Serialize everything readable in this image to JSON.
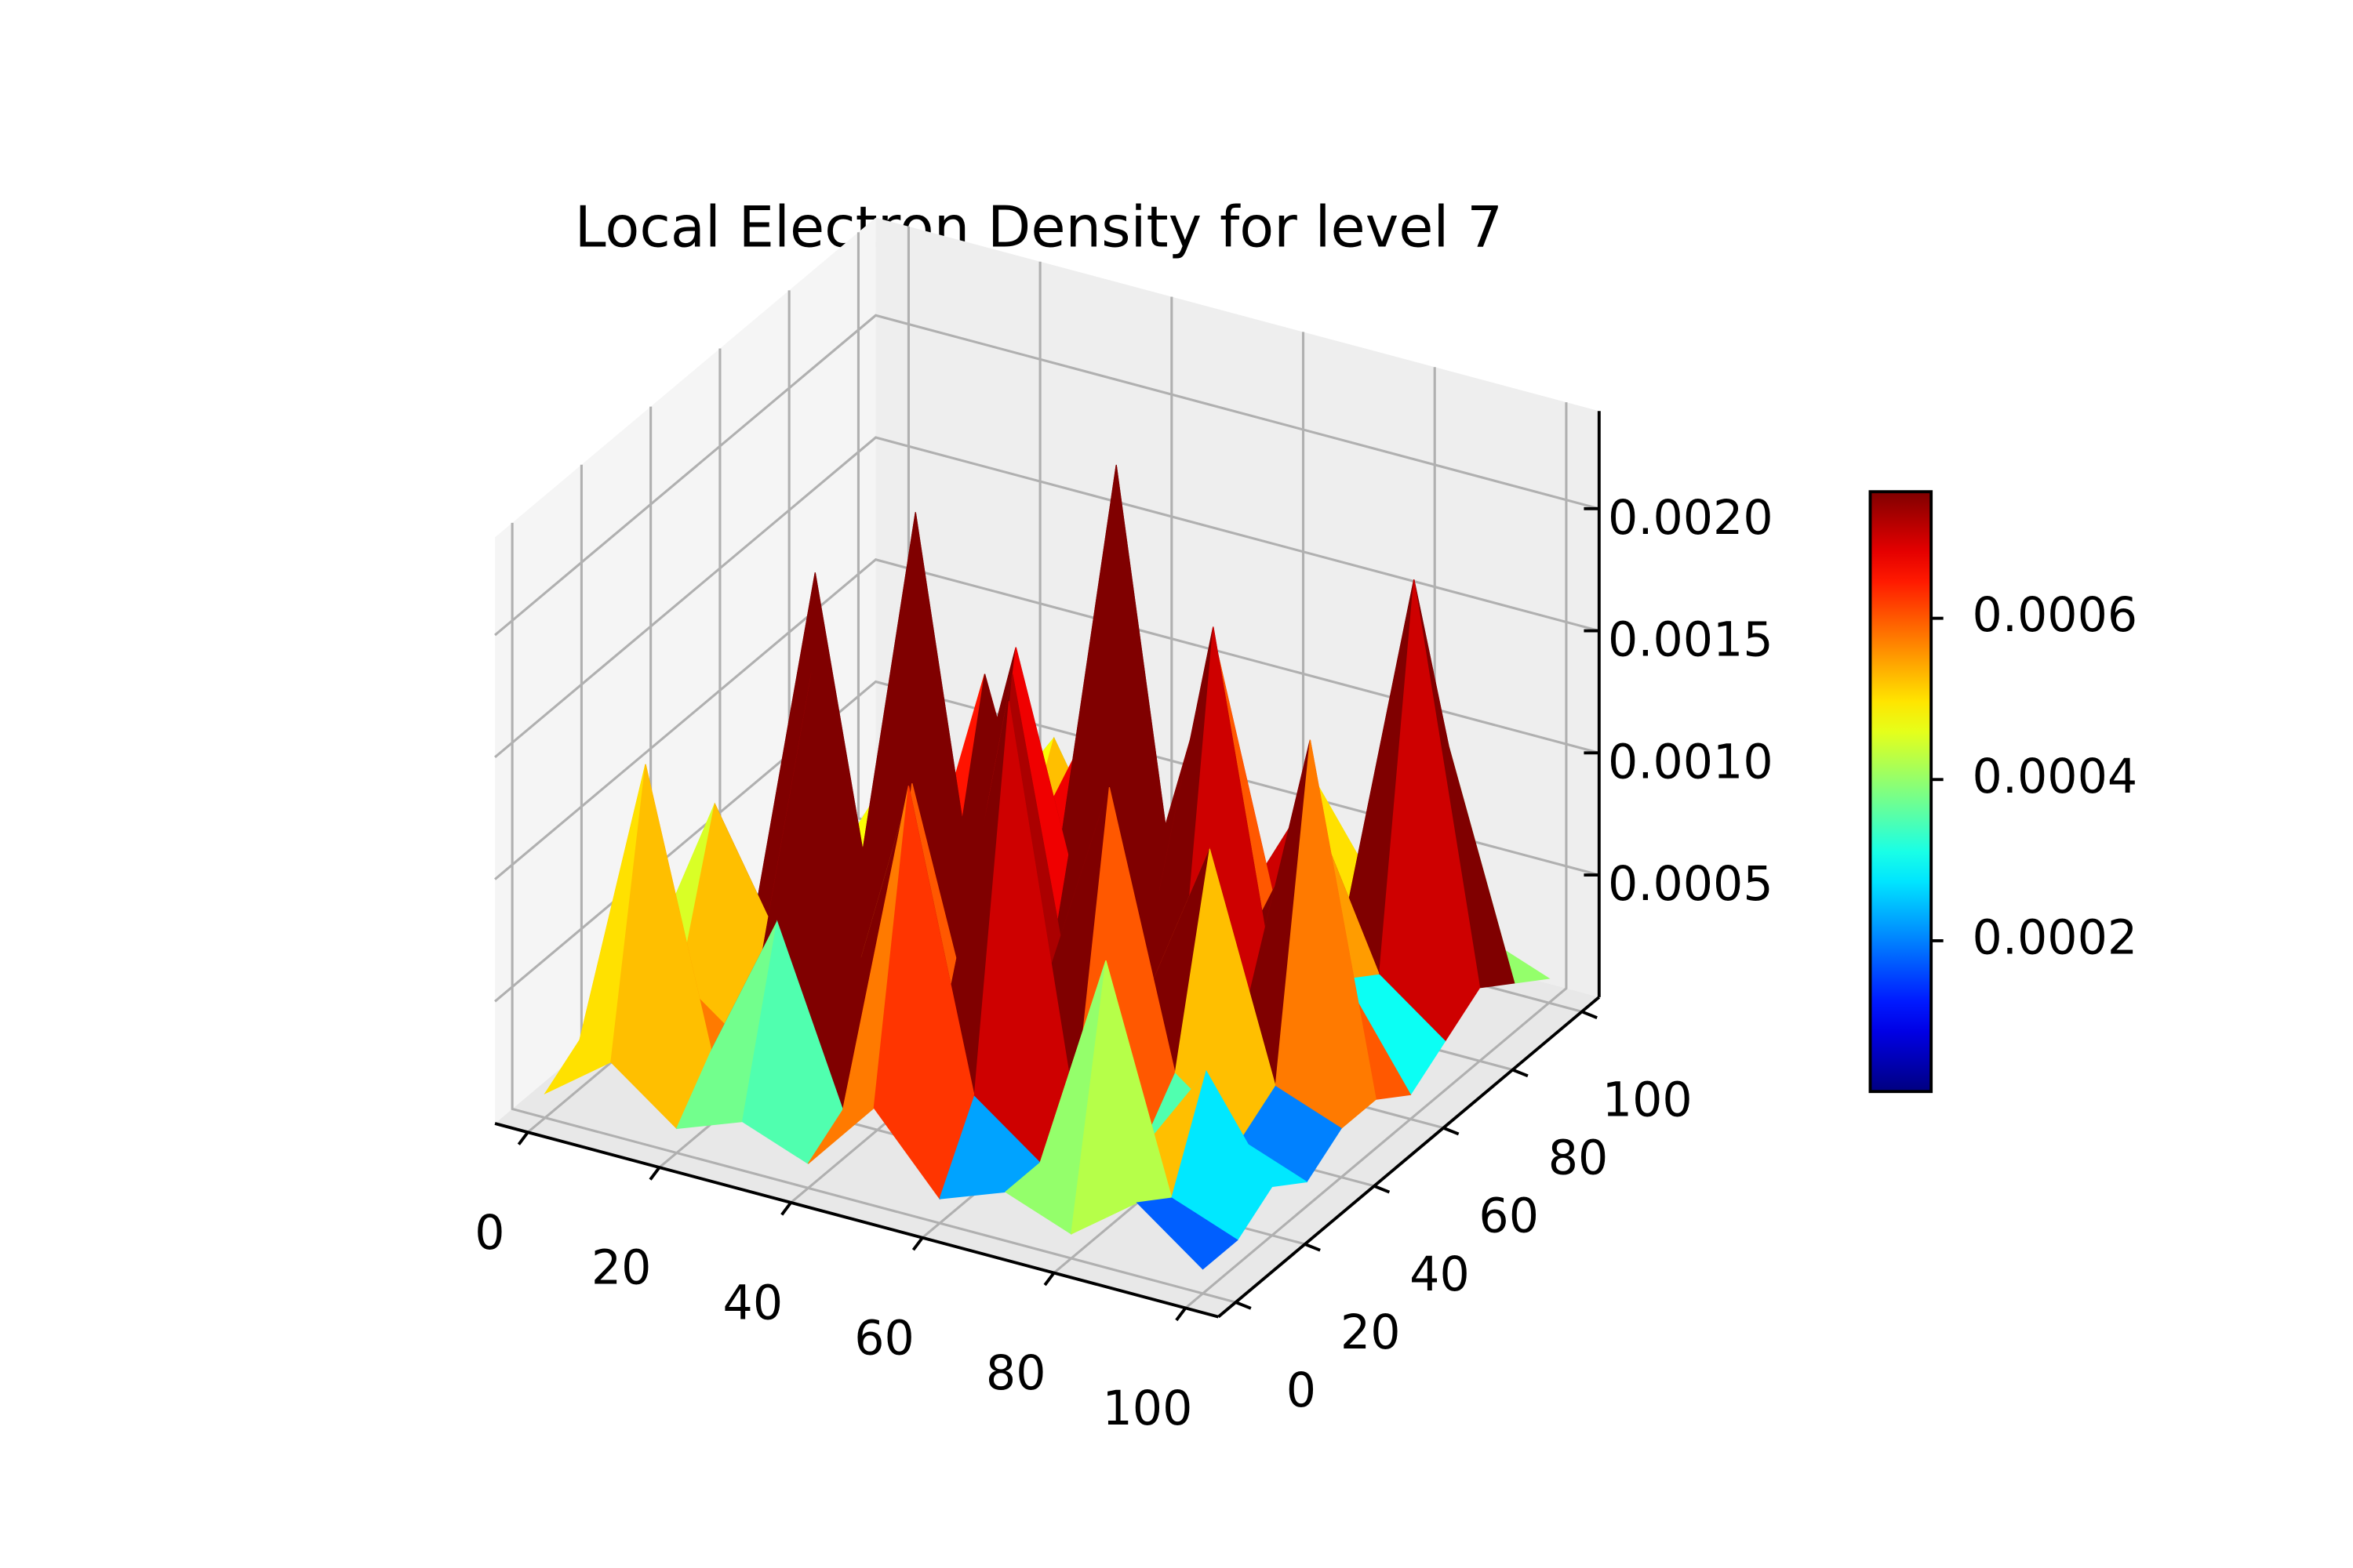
{
  "chart_data": {
    "type": "surface",
    "title": "Local Electron Density for level 7",
    "x": [
      0,
      10,
      20,
      30,
      40,
      50,
      60,
      70,
      80,
      90,
      100
    ],
    "y": [
      0,
      10,
      20,
      30,
      40,
      50,
      60,
      70,
      80,
      90,
      100
    ],
    "z": [
      [
        0.0001,
        0.0003,
        0.0001,
        0.0002,
        0.0001,
        0.0004,
        0.0001,
        0.0002,
        0.0001,
        0.0003,
        0.0001
      ],
      [
        0.0002,
        0.0014,
        0.0003,
        0.0009,
        0.0002,
        0.0016,
        0.0004,
        0.0002,
        0.0011,
        0.0002,
        0.0001
      ],
      [
        0.0001,
        0.0004,
        0.0002,
        0.0018,
        0.0003,
        0.0005,
        0.0019,
        0.0003,
        0.0002,
        0.0006,
        0.0002
      ],
      [
        0.0003,
        0.001,
        0.0005,
        0.0003,
        0.0013,
        0.0003,
        0.0006,
        0.0015,
        0.0004,
        0.0002,
        0.0001
      ],
      [
        0.0002,
        0.0003,
        0.0019,
        0.0004,
        0.0002,
        0.0017,
        0.0003,
        0.0005,
        0.0012,
        0.0003,
        0.0002
      ],
      [
        0.0001,
        0.0005,
        0.0003,
        0.0021,
        0.0004,
        0.0003,
        0.002,
        0.0003,
        0.0004,
        0.0016,
        0.0002
      ],
      [
        0.0002,
        0.0003,
        0.0008,
        0.0004,
        0.0015,
        0.0005,
        0.0004,
        0.0018,
        0.0003,
        0.0005,
        0.0001
      ],
      [
        0.0001,
        0.0004,
        0.0002,
        0.0012,
        0.0003,
        0.0022,
        0.0003,
        0.0004,
        0.001,
        0.0004,
        0.0002
      ],
      [
        0.0002,
        0.0003,
        0.0006,
        0.0003,
        0.0009,
        0.0004,
        0.0014,
        0.0003,
        0.0005,
        0.0019,
        0.0003
      ],
      [
        0.0001,
        0.0002,
        0.0003,
        0.0007,
        0.0002,
        0.0005,
        0.0003,
        0.0008,
        0.0004,
        0.0011,
        0.0002
      ],
      [
        0.0001,
        0.0001,
        0.0002,
        0.0001,
        0.0003,
        0.0002,
        0.0001,
        0.0002,
        0.0003,
        0.0002,
        0.0001
      ]
    ],
    "xlim": [
      -5,
      105
    ],
    "ylim": [
      -5,
      105
    ],
    "zlim": [
      0,
      0.0024
    ],
    "xticks": [
      0,
      20,
      40,
      60,
      80,
      100
    ],
    "yticks": [
      0,
      20,
      40,
      60,
      80,
      100
    ],
    "zticks": [
      0.0005,
      {
        "value": 0.001,
        "label": "0.0010"
      },
      0.0015,
      {
        "value": 0.002,
        "label": "0.0020"
      }
    ],
    "grid": true,
    "colormap": "jet",
    "clim": [
      1.3e-05,
      0.000757
    ],
    "colorbar_ticks": [
      0.0002,
      0.0004,
      0.0006
    ]
  }
}
